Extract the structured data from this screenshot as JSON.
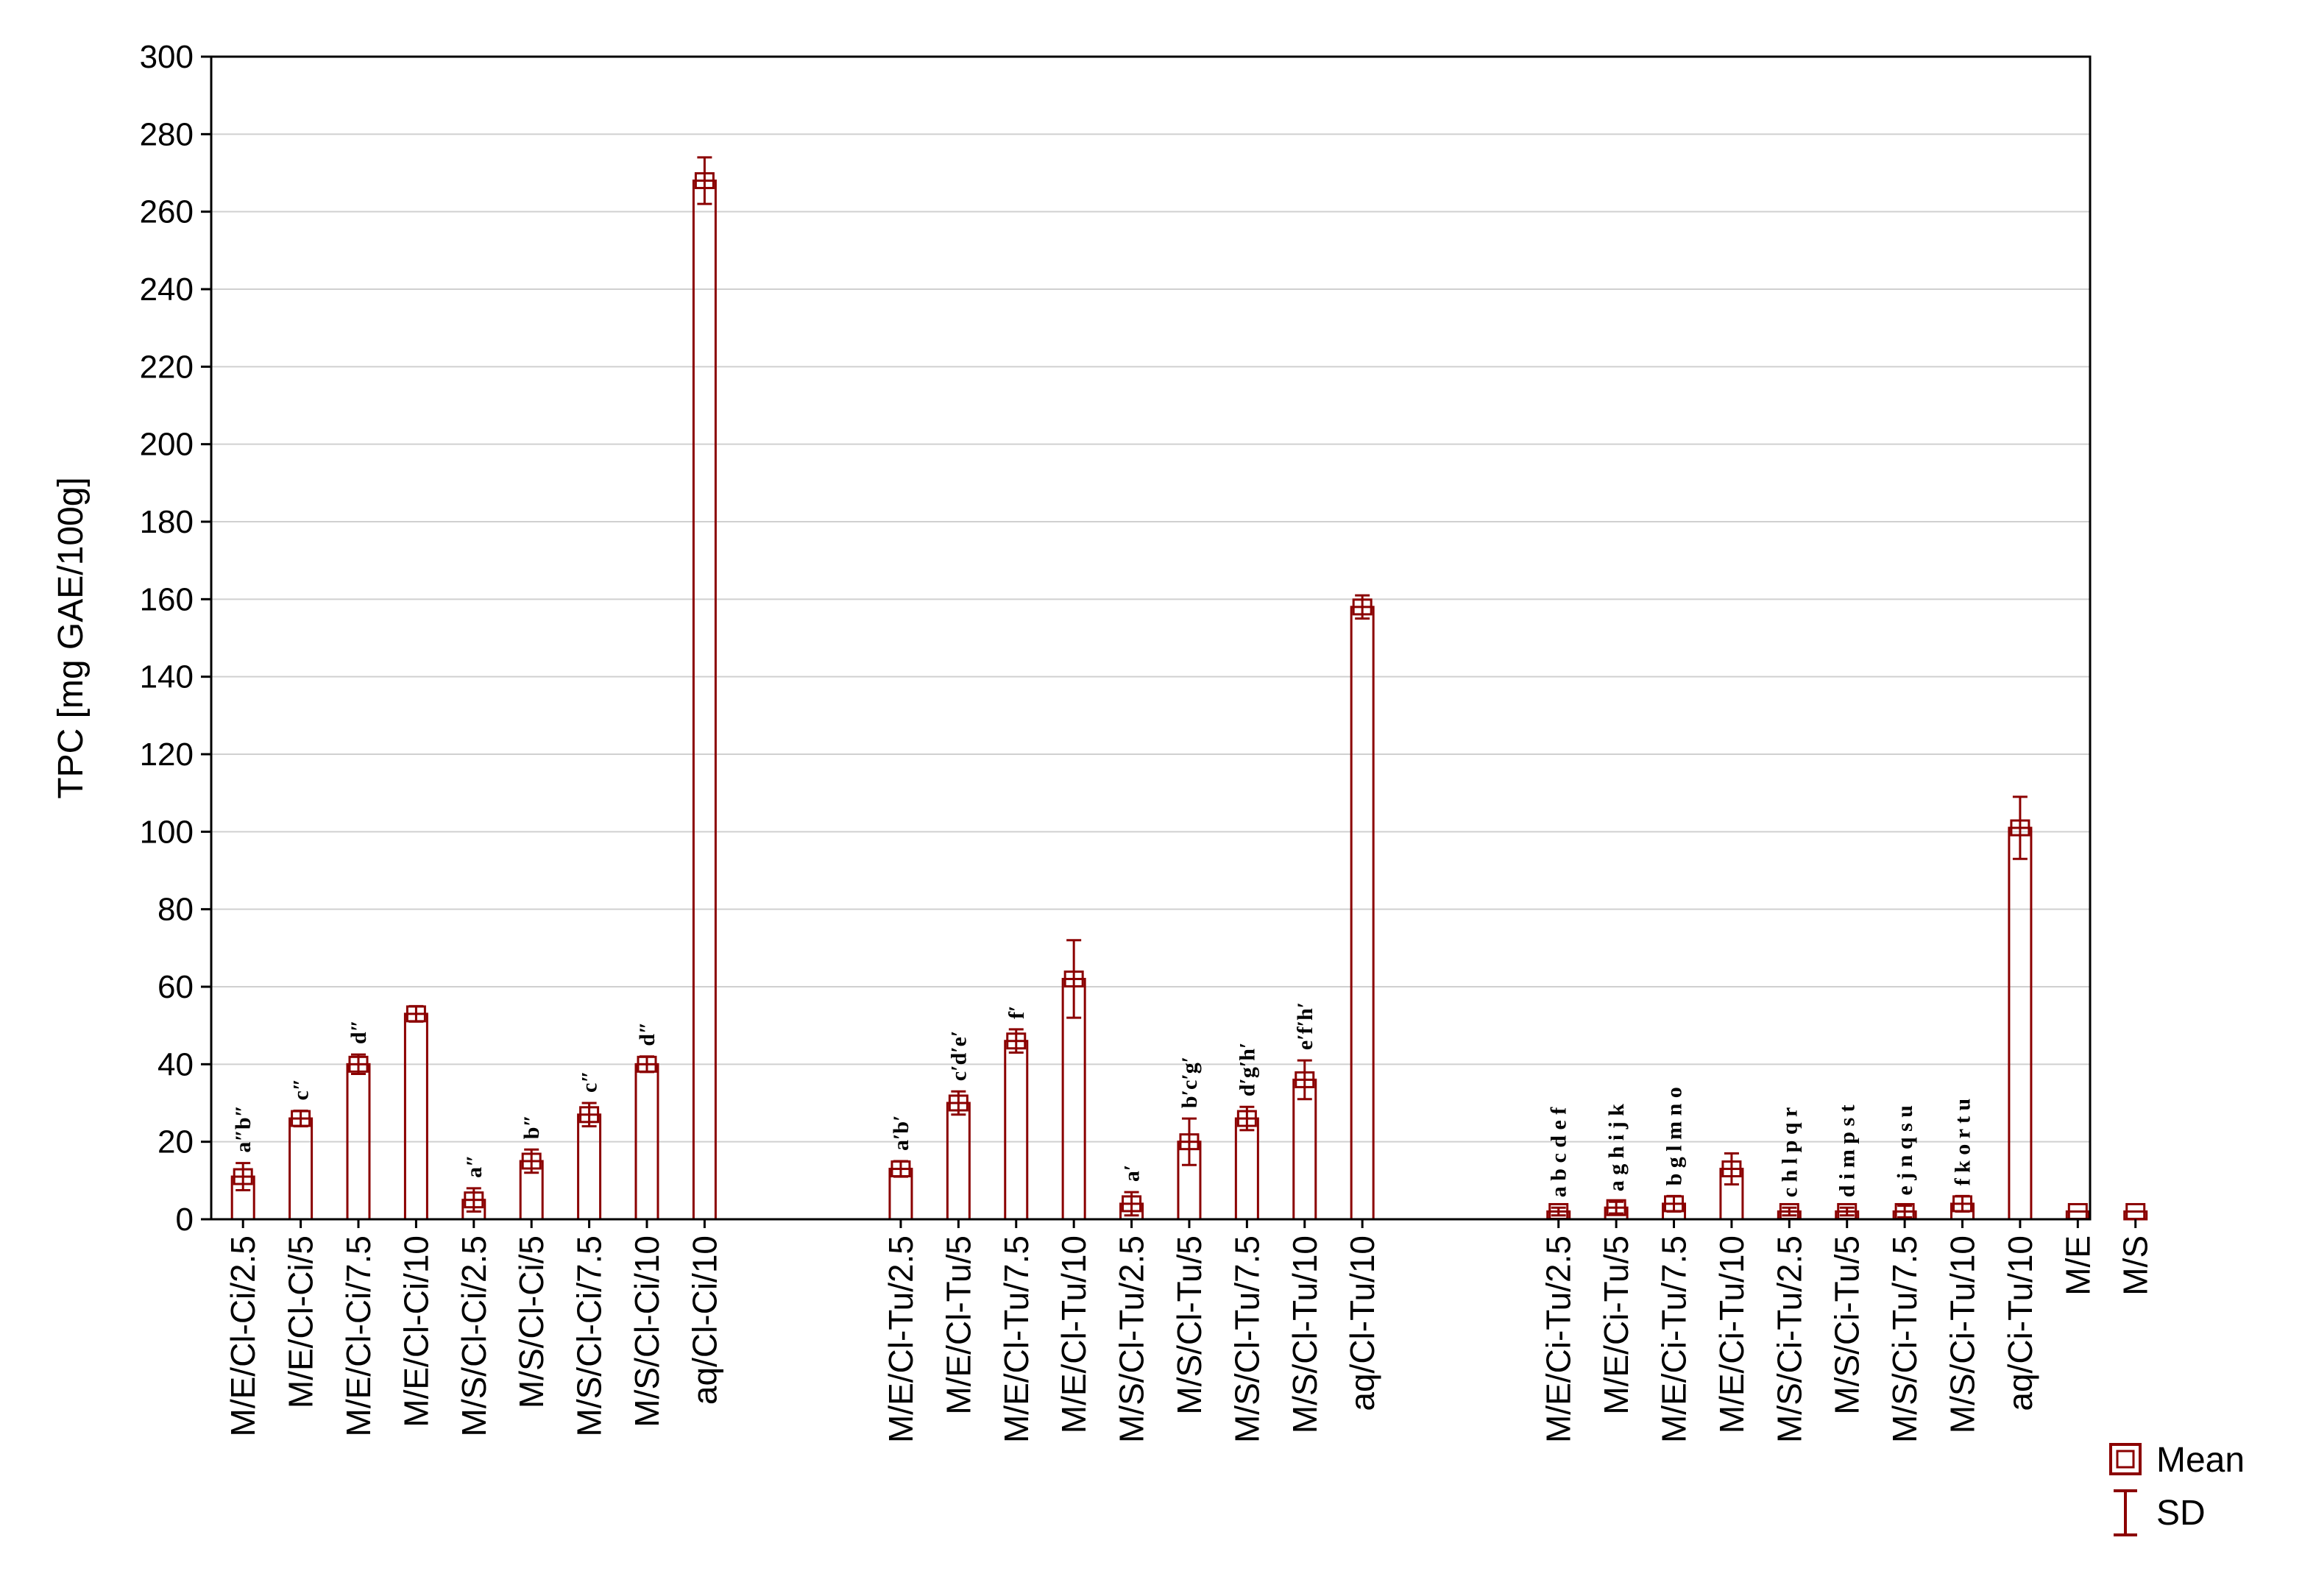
{
  "chart_data": {
    "type": "bar",
    "ylabel": "TPC [mg GAE/100g]",
    "xlabel": "",
    "ylim": [
      0,
      300
    ],
    "yticks": [
      0,
      20,
      40,
      60,
      80,
      100,
      120,
      140,
      160,
      180,
      200,
      220,
      240,
      260,
      280,
      300
    ],
    "grid": "horizontal",
    "legend_position": "bottom-right",
    "legend": [
      {
        "symbol": "mean-box",
        "label": "Mean"
      },
      {
        "symbol": "sd-whisker",
        "label": "SD"
      }
    ],
    "colors": {
      "bar": "#8b0000",
      "axis": "#000000",
      "grid": "#d0d0d0"
    },
    "groups": [
      {
        "bars": [
          {
            "category": "M/E/Cl-Ci/2.5",
            "mean": 11,
            "sd": 3.5,
            "sig": "a″b″"
          },
          {
            "category": "M/E/Cl-Ci/5",
            "mean": 26,
            "sd": 2,
            "sig": "c″"
          },
          {
            "category": "M/E/Cl-Ci/7.5",
            "mean": 40,
            "sd": 2.5,
            "sig": "d″"
          },
          {
            "category": "M/E/Cl-Ci/10",
            "mean": 53,
            "sd": 2,
            "sig": ""
          },
          {
            "category": "M/S/Cl-Ci/2.5",
            "mean": 5,
            "sd": 3,
            "sig": "a″"
          },
          {
            "category": "M/S/Cl-Ci/5",
            "mean": 15,
            "sd": 3,
            "sig": "b″"
          },
          {
            "category": "M/S/Cl-Ci/7.5",
            "mean": 27,
            "sd": 3,
            "sig": "c″"
          },
          {
            "category": "M/S/Cl-Ci/10",
            "mean": 40,
            "sd": 2,
            "sig": "d″"
          },
          {
            "category": "aq/Cl-Ci/10",
            "mean": 268,
            "sd": 6,
            "sig": ""
          }
        ]
      },
      {
        "bars": [
          {
            "category": "M/E/Cl-Tu/2.5",
            "mean": 13,
            "sd": 2,
            "sig": "a′b′"
          },
          {
            "category": "M/E/Cl-Tu/5",
            "mean": 30,
            "sd": 3,
            "sig": "c′d′e′"
          },
          {
            "category": "M/E/Cl-Tu/7.5",
            "mean": 46,
            "sd": 3,
            "sig": "f′"
          },
          {
            "category": "M/E/Cl-Tu/10",
            "mean": 62,
            "sd": 10,
            "sig": ""
          },
          {
            "category": "M/S/Cl-Tu/2.5",
            "mean": 4,
            "sd": 3,
            "sig": "a′"
          },
          {
            "category": "M/S/Cl-Tu/5",
            "mean": 20,
            "sd": 6,
            "sig": "b′c′g′"
          },
          {
            "category": "M/S/Cl-Tu/7.5",
            "mean": 26,
            "sd": 3,
            "sig": "d′g′h′"
          },
          {
            "category": "M/S/Cl-Tu/10",
            "mean": 36,
            "sd": 5,
            "sig": "e′f′h′"
          },
          {
            "category": "aq/Cl-Tu/10",
            "mean": 158,
            "sd": 3,
            "sig": ""
          }
        ]
      },
      {
        "bars": [
          {
            "category": "M/E/Ci-Tu/2.5",
            "mean": 2,
            "sd": 1,
            "sig": "a b c d e f"
          },
          {
            "category": "M/E/Ci-Tu/5",
            "mean": 3,
            "sd": 1.5,
            "sig": "a g h i j k"
          },
          {
            "category": "M/E/Ci-Tu/7.5",
            "mean": 4,
            "sd": 2,
            "sig": "b g l m n o"
          },
          {
            "category": "M/E/Ci-Tu/10",
            "mean": 13,
            "sd": 4,
            "sig": ""
          },
          {
            "category": "M/S/Ci-Tu/2.5",
            "mean": 2,
            "sd": 1,
            "sig": "c h l p q r"
          },
          {
            "category": "M/S/Ci-Tu/5",
            "mean": 2,
            "sd": 1,
            "sig": "d i m p s t"
          },
          {
            "category": "M/S/Ci-Tu/7.5",
            "mean": 2,
            "sd": 1.5,
            "sig": "e j n q s u"
          },
          {
            "category": "M/S/Ci-Tu/10",
            "mean": 4,
            "sd": 2,
            "sig": "f k o r t u"
          },
          {
            "category": "aq/Ci-Tu/10",
            "mean": 101,
            "sd": 8,
            "sig": ""
          },
          {
            "category": "M/E",
            "mean": 2,
            "sd": 0,
            "sig": ""
          },
          {
            "category": "M/S",
            "mean": 2,
            "sd": 0,
            "sig": ""
          }
        ]
      }
    ]
  }
}
